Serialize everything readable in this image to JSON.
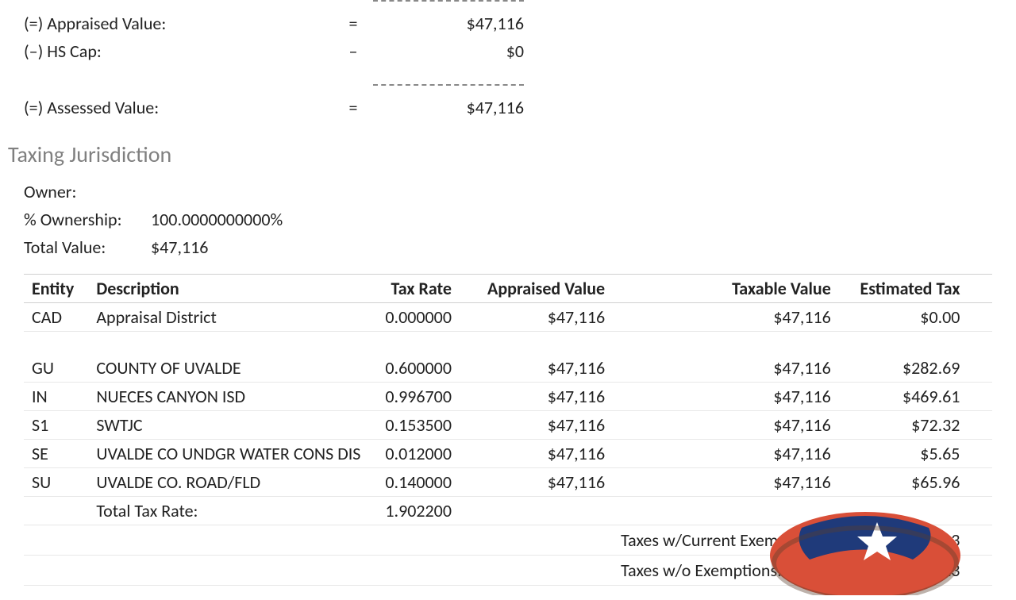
{
  "values": {
    "appraised_label": "(=) Appraised Value:",
    "appraised_op": "=",
    "appraised_amt": "$47,116",
    "hscap_label": "(–) HS Cap:",
    "hscap_op": "–",
    "hscap_amt": "$0",
    "assessed_label": "(=) Assessed Value:",
    "assessed_op": "=",
    "assessed_amt": "$47,116"
  },
  "section_title": "Taxing Jurisdiction",
  "owner": {
    "owner_label": "Owner:",
    "owner_value": "",
    "pct_label": "% Ownership:",
    "pct_value": "100.0000000000%",
    "total_label": "Total Value:",
    "total_value": "$47,116"
  },
  "table": {
    "headers": {
      "entity": "Entity",
      "desc": "Description",
      "rate": "Tax Rate",
      "appr": "Appraised Value",
      "taxable": "Taxable Value",
      "est": "Estimated Tax"
    },
    "rows": [
      {
        "entity": "CAD",
        "desc": "Appraisal District",
        "rate": "0.000000",
        "appr": "$47,116",
        "taxable": "$47,116",
        "est": "$0.00"
      },
      {
        "entity": "GU",
        "desc": "COUNTY OF UVALDE",
        "rate": "0.600000",
        "appr": "$47,116",
        "taxable": "$47,116",
        "est": "$282.69"
      },
      {
        "entity": "IN",
        "desc": "NUECES CANYON ISD",
        "rate": "0.996700",
        "appr": "$47,116",
        "taxable": "$47,116",
        "est": "$469.61"
      },
      {
        "entity": "S1",
        "desc": "SWTJC",
        "rate": "0.153500",
        "appr": "$47,116",
        "taxable": "$47,116",
        "est": "$72.32"
      },
      {
        "entity": "SE",
        "desc": "UVALDE CO UNDGR WATER CONS DIS",
        "rate": "0.012000",
        "appr": "$47,116",
        "taxable": "$47,116",
        "est": "$5.65"
      },
      {
        "entity": "SU",
        "desc": "UVALDE CO. ROAD/FLD",
        "rate": "0.140000",
        "appr": "$47,116",
        "taxable": "$47,116",
        "est": "$65.96"
      }
    ],
    "total_rate_label": "Total Tax Rate:",
    "total_rate_value": "1.902200",
    "summary": {
      "with_label": "Taxes w/Current Exemptions:",
      "with_value": "$896.23",
      "without_label": "Taxes w/o Exemptions:",
      "without_value": "$896.23"
    }
  },
  "colors": {
    "text": "#222222",
    "muted": "#808080",
    "border": "#d0d0d0",
    "badge_red": "#d94f38",
    "badge_blue": "#1f3a7a",
    "badge_white": "#ffffff"
  }
}
